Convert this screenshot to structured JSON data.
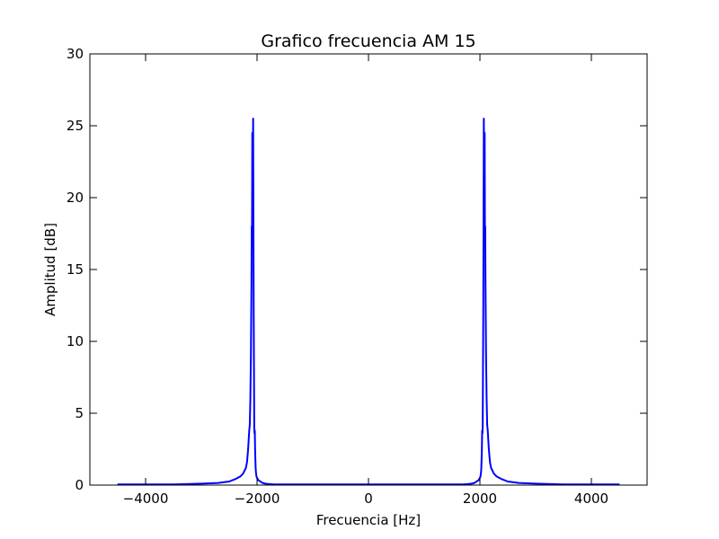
{
  "chart_data": {
    "type": "line",
    "title": "Grafico frecuencia AM 15",
    "xlabel": "Frecuencia [Hz]",
    "ylabel": "Amplitud [dB]",
    "xlim": [
      -5000,
      5000
    ],
    "ylim": [
      0,
      30
    ],
    "xticks": [
      -4000,
      -2000,
      0,
      2000,
      4000
    ],
    "xtick_labels": [
      "−4000",
      "−2000",
      "0",
      "2000",
      "4000"
    ],
    "yticks": [
      0,
      5,
      10,
      15,
      20,
      25,
      30
    ],
    "ytick_labels": [
      "0",
      "5",
      "10",
      "15",
      "20",
      "25",
      "30"
    ],
    "grid": false,
    "series": [
      {
        "color": "#0000ff",
        "x": [
          -4500,
          -3500,
          -3000,
          -2700,
          -2500,
          -2400,
          -2300,
          -2250,
          -2200,
          -2180,
          -2160,
          -2140,
          -2130,
          -2120,
          -2110,
          -2100,
          -2095,
          -2090,
          -2085,
          -2080,
          -2075,
          -2070,
          -2065,
          -2060,
          -2055,
          -2050,
          -2045,
          -2040,
          -2035,
          -2030,
          -2025,
          -2020,
          -2010,
          -2000,
          -1990,
          -1980,
          -1960,
          -1940,
          -1920,
          -1900,
          -1850,
          -1800,
          -1700,
          -1600,
          -1500,
          -1000,
          0,
          1000,
          1500,
          1600,
          1700,
          1800,
          1850,
          1900,
          1920,
          1940,
          1960,
          1980,
          1990,
          2000,
          2010,
          2020,
          2025,
          2030,
          2035,
          2040,
          2045,
          2050,
          2055,
          2060,
          2065,
          2070,
          2075,
          2080,
          2085,
          2090,
          2095,
          2100,
          2110,
          2120,
          2130,
          2140,
          2160,
          2180,
          2200,
          2250,
          2300,
          2400,
          2500,
          2700,
          3000,
          3500,
          4500
        ],
        "y": [
          0.05,
          0.05,
          0.1,
          0.15,
          0.25,
          0.4,
          0.6,
          0.8,
          1.2,
          1.6,
          2.5,
          3.8,
          4.2,
          6.0,
          9.0,
          14.0,
          18.0,
          17.5,
          24.5,
          24.3,
          22.0,
          25.5,
          18.5,
          12.0,
          8.0,
          4.0,
          3.6,
          3.8,
          2.5,
          1.8,
          1.2,
          0.9,
          0.6,
          0.5,
          0.45,
          0.35,
          0.3,
          0.25,
          0.2,
          0.15,
          0.1,
          0.08,
          0.05,
          0.05,
          0.05,
          0.05,
          0.05,
          0.05,
          0.05,
          0.05,
          0.05,
          0.08,
          0.1,
          0.15,
          0.2,
          0.25,
          0.3,
          0.35,
          0.45,
          0.5,
          0.6,
          0.9,
          1.2,
          1.8,
          2.5,
          3.8,
          3.6,
          4.0,
          8.0,
          12.0,
          18.5,
          25.5,
          22.0,
          24.3,
          24.5,
          17.5,
          18.0,
          14.0,
          9.0,
          6.0,
          4.2,
          3.8,
          2.5,
          1.6,
          1.2,
          0.8,
          0.6,
          0.4,
          0.25,
          0.15,
          0.1,
          0.05,
          0.05
        ]
      }
    ]
  }
}
